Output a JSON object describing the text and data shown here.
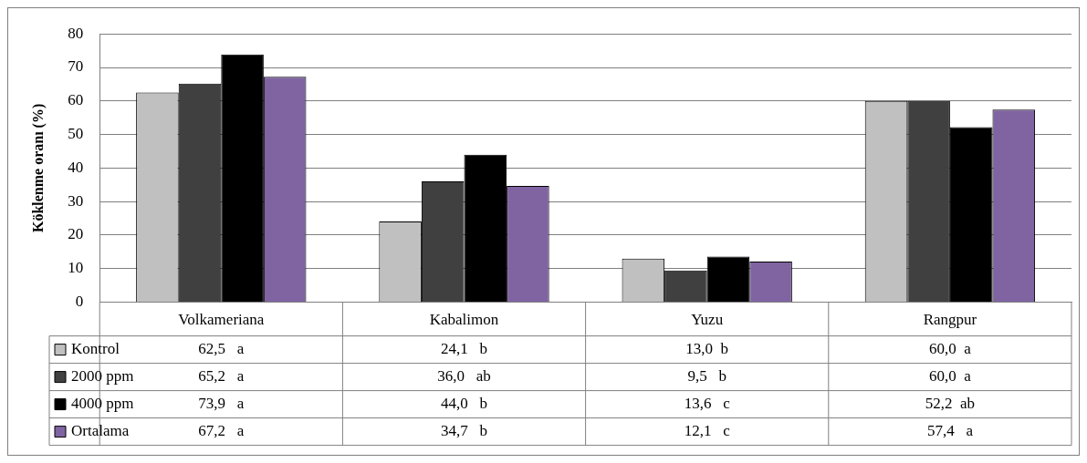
{
  "chart_data": {
    "type": "bar",
    "ylabel": "Köklenme oranı (%)",
    "categories": [
      "Volkameriana",
      "Kabalimon",
      "Yuzu",
      "Rangpur"
    ],
    "series": [
      {
        "name": "Kontrol",
        "color": "#c0c0c0",
        "values": [
          62.5,
          24.1,
          13.0,
          60.0
        ],
        "value_labels": [
          "62,5   a",
          "24,1   b",
          "13,0  b",
          "60,0  a"
        ]
      },
      {
        "name": "2000 ppm",
        "color": "#404040",
        "values": [
          65.2,
          36.0,
          9.5,
          60.0
        ],
        "value_labels": [
          "65,2   a",
          "36,0   ab",
          "9,5   b",
          "60,0  a"
        ]
      },
      {
        "name": "4000 ppm",
        "color": "#000000",
        "values": [
          73.9,
          44.0,
          13.6,
          52.2
        ],
        "value_labels": [
          "73,9   a",
          "44,0   b",
          "13,6   c",
          "52,2  ab"
        ]
      },
      {
        "name": "Ortalama",
        "color": "#8064a2",
        "values": [
          67.2,
          34.7,
          12.1,
          57.4
        ],
        "value_labels": [
          "67,2   a",
          "34,7   b",
          "12,1   c",
          "57,4   a"
        ]
      }
    ],
    "ylim": [
      0,
      80
    ],
    "yticks": [
      0,
      10,
      20,
      30,
      40,
      50,
      60,
      70,
      80
    ],
    "grid": "y",
    "legend": "bottom"
  }
}
